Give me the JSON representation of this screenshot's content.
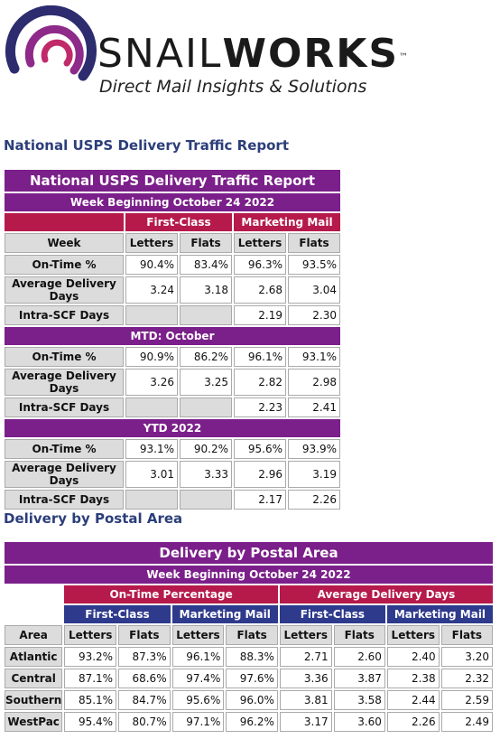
{
  "logo": {
    "brand_light": "SNAIL",
    "brand_bold": "WORKS",
    "trademark": "™",
    "tagline": "Direct Mail Insights & Solutions"
  },
  "section1_title": "National USPS Delivery Traffic Report",
  "table1": {
    "title": "National USPS Delivery Traffic Report",
    "week_label": "Week Beginning October 24 2022",
    "group_first_class": "First-Class",
    "group_marketing": "Marketing Mail",
    "col_week": "Week",
    "col_letters": "Letters",
    "col_flats": "Flats",
    "row_ontime": "On-Time %",
    "row_avg": "Average Delivery Days",
    "row_intra": "Intra-SCF Days",
    "week": {
      "ontime": [
        "90.4%",
        "83.4%",
        "96.3%",
        "93.5%"
      ],
      "avg": [
        "3.24",
        "3.18",
        "2.68",
        "3.04"
      ],
      "intra": [
        "2.19",
        "2.30"
      ]
    },
    "mtd_label": "MTD: October",
    "mtd": {
      "ontime": [
        "90.9%",
        "86.2%",
        "96.1%",
        "93.1%"
      ],
      "avg": [
        "3.26",
        "3.25",
        "2.82",
        "2.98"
      ],
      "intra": [
        "2.23",
        "2.41"
      ]
    },
    "ytd_label": "YTD 2022",
    "ytd": {
      "ontime": [
        "93.1%",
        "90.2%",
        "95.6%",
        "93.9%"
      ],
      "avg": [
        "3.01",
        "3.33",
        "2.96",
        "3.19"
      ],
      "intra": [
        "2.17",
        "2.26"
      ]
    }
  },
  "section2_title": "Delivery by Postal Area",
  "table2": {
    "title": "Delivery by Postal Area",
    "week_label": "Week Beginning October 24 2022",
    "group_ontime": "On-Time Percentage",
    "group_avg": "Average Delivery Days",
    "first_class": "First-Class",
    "marketing": "Marketing Mail",
    "col_area": "Area",
    "col_letters": "Letters",
    "col_flats": "Flats",
    "rows": [
      {
        "area": "Atlantic",
        "v": [
          "93.2%",
          "87.3%",
          "96.1%",
          "88.3%",
          "2.71",
          "2.60",
          "2.40",
          "3.20"
        ]
      },
      {
        "area": "Central",
        "v": [
          "87.1%",
          "68.6%",
          "97.4%",
          "97.6%",
          "3.36",
          "3.87",
          "2.38",
          "2.32"
        ]
      },
      {
        "area": "Southern",
        "v": [
          "85.1%",
          "84.7%",
          "95.6%",
          "96.0%",
          "3.81",
          "3.58",
          "2.44",
          "2.59"
        ]
      },
      {
        "area": "WestPac",
        "v": [
          "95.4%",
          "80.7%",
          "97.1%",
          "96.2%",
          "3.17",
          "3.60",
          "2.26",
          "2.49"
        ]
      }
    ]
  }
}
